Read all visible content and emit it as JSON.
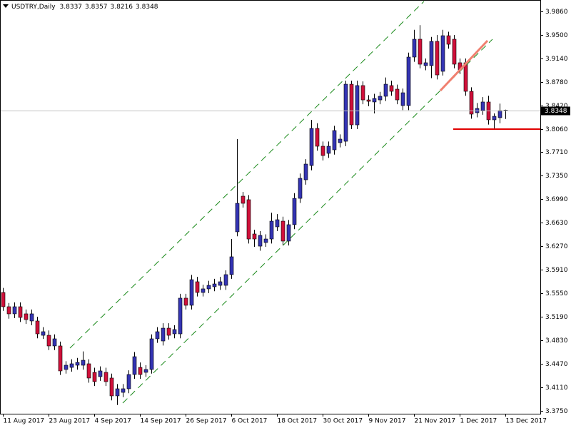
{
  "chart_data": {
    "type": "candlestick",
    "title": "USDTRY,Daily",
    "up_color": "#3434b4",
    "down_color": "#d0103a",
    "categories": [
      "11 Aug 2017",
      null,
      null,
      null,
      null,
      null,
      null,
      null,
      "23 Aug 2017",
      null,
      null,
      null,
      null,
      null,
      null,
      null,
      "4 Sep 2017",
      null,
      null,
      null,
      null,
      null,
      null,
      null,
      "14 Sep 2017",
      null,
      null,
      null,
      null,
      null,
      null,
      null,
      "26 Sep 2017",
      null,
      null,
      null,
      null,
      null,
      null,
      null,
      "6 Oct 2017",
      null,
      null,
      null,
      null,
      null,
      null,
      null,
      "18 Oct 2017",
      null,
      null,
      null,
      null,
      null,
      null,
      null,
      "30 Oct 2017",
      null,
      null,
      null,
      null,
      null,
      null,
      null,
      "9 Nov 2017",
      null,
      null,
      null,
      null,
      null,
      null,
      null,
      "21 Nov 2017",
      null,
      null,
      null,
      null,
      null,
      null,
      null,
      "1 Dec 2017",
      null,
      null,
      null,
      null,
      null,
      null,
      null,
      "13 Dec 2017"
    ],
    "open": [
      3.5561,
      3.5343,
      3.5234,
      3.5343,
      3.5234,
      3.5125,
      3.5125,
      3.4906,
      3.4906,
      3.4743,
      3.4743,
      3.4383,
      3.4415,
      3.4448,
      3.4448,
      3.447,
      3.4339,
      3.4273,
      3.4339,
      3.4252,
      3.3979,
      3.4033,
      3.4088,
      3.4306,
      3.4415,
      3.4339,
      3.4383,
      3.4852,
      3.4819,
      3.5015,
      3.4928,
      3.4928,
      3.5474,
      3.5365,
      3.5725,
      3.5561,
      3.5616,
      3.5648,
      3.567,
      3.567,
      3.5834,
      3.6489,
      3.7034,
      3.698,
      3.6456,
      3.627,
      3.6325,
      3.6379,
      3.6565,
      3.6652,
      3.6347,
      3.6598,
      3.7001,
      3.7285,
      3.7503,
      3.8071,
      3.7798,
      3.7689,
      3.7743,
      3.7853,
      3.7874,
      3.8747,
      3.8125,
      3.8726,
      3.8507,
      3.8475,
      3.8507,
      3.8562,
      3.8726,
      3.8671,
      3.842,
      3.842,
      3.9162,
      3.9435,
      3.9031,
      3.9031,
      3.9402,
      3.8944,
      3.9489,
      3.9435,
      3.9075,
      3.9075,
      3.8638,
      3.8311,
      3.8344,
      3.8475,
      3.8202,
      3.8235,
      3.8337
    ],
    "high": [
      3.563,
      3.54,
      3.541,
      3.541,
      3.53,
      3.53,
      3.519,
      3.503,
      3.498,
      3.492,
      3.481,
      3.451,
      3.454,
      3.456,
      3.466,
      3.454,
      3.441,
      3.443,
      3.441,
      3.432,
      3.416,
      3.416,
      3.437,
      3.465,
      3.449,
      3.445,
      3.492,
      3.503,
      3.509,
      3.509,
      3.506,
      3.554,
      3.554,
      3.583,
      3.58,
      3.568,
      3.574,
      3.577,
      3.58,
      3.59,
      3.638,
      3.7907,
      3.71,
      3.705,
      3.652,
      3.65,
      3.645,
      3.678,
      3.676,
      3.672,
      3.667,
      3.708,
      3.738,
      3.76,
      3.82,
      3.815,
      3.787,
      3.787,
      3.811,
      3.798,
      3.88,
      3.88,
      3.88,
      3.879,
      3.858,
      3.86,
      3.863,
      3.885,
      3.88,
      3.874,
      3.868,
      3.923,
      3.958,
      3.965,
      3.914,
      3.947,
      3.95,
      3.958,
      3.955,
      3.95,
      3.914,
      3.914,
      3.87,
      3.846,
      3.855,
      3.857,
      3.83,
      3.845,
      3.8357
    ],
    "low": [
      3.528,
      3.516,
      3.517,
      3.511,
      3.508,
      3.506,
      3.486,
      3.485,
      3.468,
      3.468,
      3.43,
      3.432,
      3.435,
      3.438,
      3.438,
      3.418,
      3.413,
      3.421,
      3.413,
      3.391,
      3.384,
      3.396,
      3.402,
      3.424,
      3.424,
      3.427,
      3.432,
      3.479,
      3.475,
      3.484,
      3.486,
      3.486,
      3.53,
      3.53,
      3.55,
      3.55,
      3.555,
      3.558,
      3.56,
      3.56,
      3.577,
      3.642,
      3.686,
      3.631,
      3.626,
      3.62,
      3.626,
      3.631,
      3.65,
      3.628,
      3.628,
      3.653,
      3.693,
      3.721,
      3.743,
      3.773,
      3.758,
      3.762,
      3.767,
      3.778,
      3.78,
      3.806,
      3.806,
      3.844,
      3.841,
      3.83,
      3.844,
      3.849,
      3.857,
      3.844,
      3.835,
      3.835,
      3.909,
      3.899,
      3.896,
      3.884,
      3.882,
      3.888,
      3.929,
      3.899,
      3.89,
      3.857,
      3.822,
      3.824,
      3.828,
      3.813,
      3.807,
      3.815,
      3.8216
    ],
    "close": [
      3.5343,
      3.5234,
      3.5343,
      3.5179,
      3.5146,
      3.5234,
      3.4928,
      3.4961,
      3.4743,
      3.4852,
      3.4361,
      3.4448,
      3.447,
      3.4492,
      3.4524,
      3.4252,
      3.4197,
      3.4361,
      3.4197,
      3.3979,
      3.4088,
      3.4088,
      3.4306,
      3.4579,
      3.4306,
      3.4383,
      3.4852,
      3.4961,
      3.5015,
      3.4906,
      3.4994,
      3.5474,
      3.5365,
      3.5757,
      3.5561,
      3.5616,
      3.567,
      3.5692,
      3.5725,
      3.5834,
      3.6107,
      3.6925,
      3.6925,
      3.6379,
      3.6379,
      3.6434,
      3.6379,
      3.6652,
      3.6674,
      3.6347,
      3.6598,
      3.7001,
      3.7307,
      3.7525,
      3.8071,
      3.7798,
      3.7656,
      3.7798,
      3.8038,
      3.7907,
      3.8747,
      3.8125,
      3.8726,
      3.8507,
      3.8485,
      3.8529,
      3.8562,
      3.8747,
      3.8638,
      3.8507,
      3.8616,
      3.9162,
      3.9435,
      3.9053,
      3.9075,
      3.9402,
      3.8889,
      3.9489,
      3.9358,
      3.9053,
      3.8966,
      3.8638,
      3.8289,
      3.8376,
      3.8475,
      3.8202,
      3.8256,
      3.8344,
      3.8348
    ],
    "ylim": [
      3.3706,
      4.0035
    ],
    "yticks": [
      {
        "value": 3.986,
        "label": "3.9860"
      },
      {
        "value": 3.95,
        "label": "3.9500"
      },
      {
        "value": 3.914,
        "label": "3.9140"
      },
      {
        "value": 3.878,
        "label": "3.8780"
      },
      {
        "value": 3.842,
        "label": "3.8420"
      },
      {
        "value": 3.806,
        "label": "3.8060"
      },
      {
        "value": 3.771,
        "label": "3.7710"
      },
      {
        "value": 3.735,
        "label": "3.7350"
      },
      {
        "value": 3.699,
        "label": "3.6990"
      },
      {
        "value": 3.663,
        "label": "3.6630"
      },
      {
        "value": 3.627,
        "label": "3.6270"
      },
      {
        "value": 3.591,
        "label": "3.5910"
      },
      {
        "value": 3.555,
        "label": "3.5550"
      },
      {
        "value": 3.519,
        "label": "3.5190"
      },
      {
        "value": 3.483,
        "label": "3.4830"
      },
      {
        "value": 3.447,
        "label": "3.4470"
      },
      {
        "value": 3.411,
        "label": "3.4110"
      },
      {
        "value": 3.375,
        "label": "3.3750"
      }
    ]
  }
}
